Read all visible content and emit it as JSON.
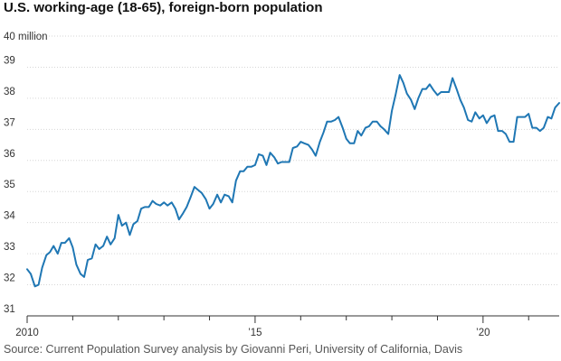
{
  "chart_data": {
    "type": "line",
    "title": "U.S. working-age (18-65), foreign-born population",
    "unit_label": "40 million",
    "source": "Source: Current Population Survey analysis by Giovanni Peri, University of California, Davis",
    "xlabel": "",
    "ylabel": "",
    "xlim": [
      2010.0,
      2021.67
    ],
    "ylim": [
      31,
      40
    ],
    "y_ticks": [
      31,
      32,
      33,
      34,
      35,
      36,
      37,
      38,
      39,
      40
    ],
    "y_tick_labels": [
      "31",
      "32",
      "33",
      "34",
      "35",
      "36",
      "37",
      "38",
      "39",
      ""
    ],
    "x_ticks": [
      2010,
      2011,
      2012,
      2013,
      2014,
      2015,
      2016,
      2017,
      2018,
      2019,
      2020,
      2021
    ],
    "x_tick_labels": [
      "2010",
      "",
      "",
      "",
      "",
      "’15",
      "",
      "",
      "",
      "",
      "’20",
      ""
    ],
    "grid": true,
    "line_color": "#1f77b4",
    "series": [
      {
        "name": "",
        "x": [
          2010.0,
          2010.08,
          2010.17,
          2010.25,
          2010.33,
          2010.42,
          2010.5,
          2010.58,
          2010.67,
          2010.75,
          2010.83,
          2010.92,
          2011.0,
          2011.08,
          2011.17,
          2011.25,
          2011.33,
          2011.42,
          2011.5,
          2011.58,
          2011.67,
          2011.75,
          2011.83,
          2011.92,
          2012.0,
          2012.08,
          2012.17,
          2012.25,
          2012.33,
          2012.42,
          2012.5,
          2012.58,
          2012.67,
          2012.75,
          2012.83,
          2012.92,
          2013.0,
          2013.08,
          2013.17,
          2013.25,
          2013.33,
          2013.42,
          2013.5,
          2013.58,
          2013.67,
          2013.75,
          2013.83,
          2013.92,
          2014.0,
          2014.08,
          2014.17,
          2014.25,
          2014.33,
          2014.42,
          2014.5,
          2014.58,
          2014.67,
          2014.75,
          2014.83,
          2014.92,
          2015.0,
          2015.08,
          2015.17,
          2015.25,
          2015.33,
          2015.42,
          2015.5,
          2015.58,
          2015.67,
          2015.75,
          2015.83,
          2015.92,
          2016.0,
          2016.08,
          2016.17,
          2016.25,
          2016.33,
          2016.42,
          2016.5,
          2016.58,
          2016.67,
          2016.75,
          2016.83,
          2016.92,
          2017.0,
          2017.08,
          2017.17,
          2017.25,
          2017.33,
          2017.42,
          2017.5,
          2017.58,
          2017.67,
          2017.75,
          2017.83,
          2017.92,
          2018.0,
          2018.08,
          2018.17,
          2018.25,
          2018.33,
          2018.42,
          2018.5,
          2018.58,
          2018.67,
          2018.75,
          2018.83,
          2018.92,
          2019.0,
          2019.08,
          2019.17,
          2019.25,
          2019.33,
          2019.42,
          2019.5,
          2019.58,
          2019.67,
          2019.75,
          2019.83,
          2019.92,
          2020.0,
          2020.08,
          2020.17,
          2020.25,
          2020.33,
          2020.42,
          2020.5,
          2020.58,
          2020.67,
          2020.75,
          2020.83,
          2020.92,
          2021.0,
          2021.08,
          2021.17,
          2021.25,
          2021.33,
          2021.42,
          2021.5,
          2021.58,
          2021.67
        ],
        "y": [
          32.5,
          32.35,
          31.95,
          32.0,
          32.55,
          32.95,
          33.05,
          33.25,
          33.0,
          33.35,
          33.35,
          33.5,
          33.2,
          32.65,
          32.35,
          32.25,
          32.8,
          32.85,
          33.3,
          33.15,
          33.25,
          33.55,
          33.3,
          33.5,
          34.25,
          33.9,
          34.0,
          33.6,
          33.95,
          34.05,
          34.45,
          34.5,
          34.5,
          34.7,
          34.6,
          34.55,
          34.65,
          34.55,
          34.65,
          34.45,
          34.1,
          34.3,
          34.5,
          34.8,
          35.15,
          35.05,
          34.95,
          34.75,
          34.45,
          34.6,
          34.9,
          34.65,
          34.9,
          34.85,
          34.65,
          35.35,
          35.65,
          35.65,
          35.8,
          35.8,
          35.85,
          36.2,
          36.15,
          35.85,
          36.25,
          36.1,
          35.9,
          35.95,
          35.95,
          35.95,
          36.4,
          36.45,
          36.6,
          36.55,
          36.5,
          36.35,
          36.15,
          36.6,
          36.9,
          37.25,
          37.25,
          37.3,
          37.4,
          37.05,
          36.7,
          36.55,
          36.55,
          36.95,
          36.8,
          37.05,
          37.1,
          37.25,
          37.25,
          37.1,
          37.0,
          36.85,
          37.6,
          38.1,
          38.75,
          38.5,
          38.15,
          37.95,
          37.65,
          38.0,
          38.3,
          38.3,
          38.45,
          38.25,
          38.1,
          38.2,
          38.2,
          38.2,
          38.65,
          38.3,
          37.95,
          37.7,
          37.3,
          37.25,
          37.55,
          37.35,
          37.45,
          37.2,
          37.4,
          37.45,
          36.95,
          36.95,
          36.85,
          36.6,
          36.6,
          37.4,
          37.4,
          37.4,
          37.5,
          37.05,
          37.05,
          36.95,
          37.05,
          37.4,
          37.35,
          37.7,
          37.85
        ]
      }
    ]
  }
}
